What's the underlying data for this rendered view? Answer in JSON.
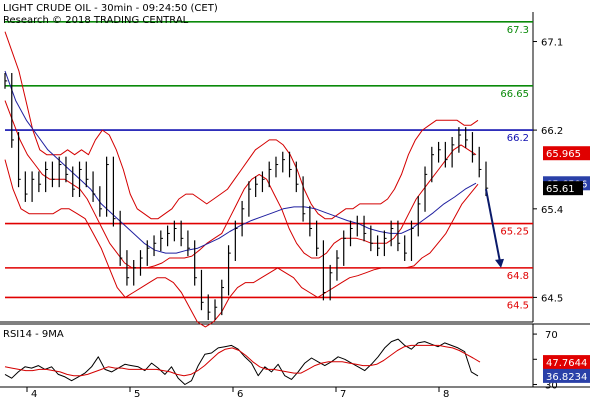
{
  "header": {
    "title": "LIGHT CRUDE OIL - 30min - 09:24:50 (CET)",
    "research": "Research © 2018 TRADING CENTRAL"
  },
  "colors": {
    "price": "#000000",
    "bollinger": "#d40000",
    "moving_average": "#2020a0",
    "resistance": "#0a8a0a",
    "pivot": "#1010b0",
    "support": "#e00000",
    "arrow": "#0a1a6a",
    "rsi": "#000000",
    "rsi_ma": "#d40000",
    "tag_red": "#e00000",
    "tag_blue": "#2a40a8",
    "tag_black": "#000000"
  },
  "chart_data": [
    {
      "type": "line",
      "title": "LIGHT CRUDE OIL - 30min - 09:24:50 (CET)",
      "xlabel": "",
      "ylabel": "",
      "x_ticks": [
        "4",
        "5",
        "6",
        "7",
        "8"
      ],
      "y_ticks": [
        "64.5",
        "65.4",
        "66.2",
        "67.1"
      ],
      "ylim": [
        64.25,
        67.4
      ],
      "grid": false,
      "levels": [
        {
          "label": "67.3",
          "value": 67.3,
          "kind": "resistance"
        },
        {
          "label": "66.65",
          "value": 66.65,
          "kind": "resistance"
        },
        {
          "label": "66.2",
          "value": 66.2,
          "kind": "pivot"
        },
        {
          "label": "65.25",
          "value": 65.25,
          "kind": "support"
        },
        {
          "label": "64.8",
          "value": 64.8,
          "kind": "support"
        },
        {
          "label": "64.5",
          "value": 64.5,
          "kind": "support"
        }
      ],
      "price_tags": [
        {
          "label": "65.965",
          "value": 65.965,
          "style": "tag_red"
        },
        {
          "label": "65.6596",
          "value": 65.6596,
          "style": "tag_blue"
        },
        {
          "label": "65.61",
          "value": 65.61,
          "style": "tag_black"
        }
      ],
      "projection": {
        "from": 65.6,
        "to": 64.8
      },
      "series": [
        {
          "kind": "price",
          "values": [
            66.7,
            66.1,
            65.7,
            65.55,
            65.7,
            65.65,
            65.8,
            65.7,
            65.85,
            65.75,
            65.6,
            65.8,
            65.7,
            65.55,
            65.4,
            65.85,
            65.3,
            64.9,
            64.7,
            64.8,
            64.9,
            65.0,
            65.05,
            65.1,
            65.15,
            65.2,
            65.1,
            65.0,
            64.7,
            64.45,
            64.35,
            64.4,
            64.6,
            64.95,
            65.2,
            65.4,
            65.6,
            65.65,
            65.7,
            65.8,
            65.85,
            65.9,
            65.8,
            65.65,
            65.35,
            65.2,
            65.0,
            64.55,
            64.75,
            64.9,
            65.1,
            65.2,
            65.25,
            65.15,
            65.05,
            65.0,
            65.1,
            65.2,
            65.05,
            64.95,
            65.2,
            65.45,
            65.75,
            65.95,
            66.0,
            65.9,
            66.05,
            66.15,
            66.1,
            65.95,
            65.8,
            65.61
          ]
        },
        {
          "kind": "bollinger_upper",
          "values": [
            67.2,
            67.0,
            66.8,
            66.5,
            66.2,
            66.0,
            65.95,
            65.95,
            65.95,
            66.0,
            65.95,
            66.0,
            65.95,
            66.1,
            66.2,
            66.15,
            66.0,
            65.8,
            65.55,
            65.4,
            65.35,
            65.3,
            65.3,
            65.35,
            65.4,
            65.5,
            65.55,
            65.55,
            65.5,
            65.45,
            65.5,
            65.55,
            65.6,
            65.7,
            65.8,
            65.9,
            66.0,
            66.05,
            66.1,
            66.1,
            66.05,
            65.95,
            65.8,
            65.6,
            65.45,
            65.35,
            65.3,
            65.3,
            65.35,
            65.4,
            65.4,
            65.45,
            65.45,
            65.45,
            65.45,
            65.5,
            65.6,
            65.75,
            65.95,
            66.1,
            66.2,
            66.25,
            66.3,
            66.3,
            66.3,
            66.3,
            66.25,
            66.25,
            66.3
          ]
        },
        {
          "kind": "bollinger_lower",
          "values": [
            65.9,
            65.6,
            65.4,
            65.35,
            65.35,
            65.35,
            65.35,
            65.4,
            65.4,
            65.35,
            65.3,
            65.15,
            65.0,
            64.8,
            64.6,
            64.5,
            64.55,
            64.6,
            64.65,
            64.7,
            64.7,
            64.65,
            64.55,
            64.4,
            64.25,
            64.2,
            64.25,
            64.35,
            64.5,
            64.6,
            64.65,
            64.65,
            64.7,
            64.75,
            64.8,
            64.75,
            64.7,
            64.6,
            64.55,
            64.5,
            64.55,
            64.6,
            64.65,
            64.7,
            64.72,
            64.75,
            64.78,
            64.8,
            64.8,
            64.8,
            64.8,
            64.82,
            64.9,
            64.95,
            65.05,
            65.15,
            65.3,
            65.45,
            65.55,
            65.65
          ]
        },
        {
          "kind": "bollinger_middle",
          "values": [
            66.5,
            66.3,
            66.1,
            65.95,
            65.85,
            65.75,
            65.7,
            65.7,
            65.7,
            65.65,
            65.6,
            65.5,
            65.35,
            65.2,
            65.05,
            64.95,
            64.85,
            64.8,
            64.8,
            64.8,
            64.82,
            64.85,
            64.9,
            64.9,
            64.9,
            64.92,
            64.98,
            65.05,
            65.1,
            65.15,
            65.3,
            65.45,
            65.6,
            65.7,
            65.75,
            65.7,
            65.55,
            65.4,
            65.2,
            65.05,
            64.95,
            64.9,
            64.9,
            64.95,
            65.05,
            65.1,
            65.1,
            65.1,
            65.08,
            65.05,
            65.05,
            65.05,
            65.1,
            65.2,
            65.35,
            65.5,
            65.6,
            65.7,
            65.8,
            65.9,
            66.0,
            66.05,
            66.0,
            65.95
          ]
        },
        {
          "kind": "moving_average",
          "values": [
            66.8,
            66.5,
            66.3,
            66.15,
            66.0,
            65.9,
            65.8,
            65.7,
            65.6,
            65.45,
            65.35,
            65.25,
            65.15,
            65.05,
            64.98,
            64.95,
            64.95,
            64.98,
            65.0,
            65.05,
            65.1,
            65.17,
            65.23,
            65.28,
            65.32,
            65.36,
            65.4,
            65.42,
            65.42,
            65.4,
            65.36,
            65.32,
            65.28,
            65.25,
            65.2,
            65.17,
            65.15,
            65.15,
            65.2,
            65.28,
            65.36,
            65.45,
            65.52,
            65.6,
            65.66
          ]
        }
      ]
    },
    {
      "type": "line",
      "title": "RSI14 - 9MA",
      "xlabel": "",
      "ylabel": "",
      "x_ticks": [
        "4",
        "5",
        "6",
        "7",
        "8"
      ],
      "y_ticks": [
        "70",
        "50",
        "30"
      ],
      "ylim": [
        28,
        78
      ],
      "grid": false,
      "value_tags": [
        {
          "label": "47.7644",
          "value": 47.7644,
          "style": "tag_red"
        },
        {
          "label": "36.8234",
          "value": 36.8234,
          "style": "tag_blue"
        }
      ],
      "series": [
        {
          "kind": "rsi",
          "values": [
            38,
            35,
            40,
            44,
            43,
            45,
            42,
            44,
            38,
            36,
            33,
            36,
            39,
            44,
            52,
            42,
            40,
            43,
            46,
            45,
            44,
            41,
            47,
            43,
            38,
            44,
            35,
            30,
            33,
            45,
            54,
            55,
            59,
            60,
            61,
            58,
            52,
            47,
            37,
            44,
            40,
            46,
            37,
            34,
            40,
            47,
            51,
            48,
            45,
            48,
            52,
            50,
            47,
            44,
            41,
            46,
            52,
            59,
            64,
            66,
            61,
            58,
            63,
            64,
            62,
            60,
            63,
            61,
            59,
            56,
            40,
            36.8
          ]
        },
        {
          "kind": "rsi_ma",
          "values": [
            44,
            43,
            42,
            41,
            41,
            42,
            42,
            41,
            40,
            38,
            37,
            37,
            38,
            40,
            42,
            44,
            43,
            43,
            42,
            42,
            42,
            42,
            42,
            41,
            40,
            38,
            37,
            38,
            41,
            45,
            50,
            55,
            58,
            59,
            57,
            53,
            48,
            44,
            42,
            42,
            41,
            40,
            39,
            39,
            42,
            45,
            47,
            48,
            48,
            48,
            47,
            46,
            45,
            45,
            46,
            49,
            53,
            57,
            60,
            61,
            61,
            61,
            61,
            61,
            60,
            59,
            57,
            54,
            51,
            47.8
          ]
        }
      ]
    }
  ]
}
